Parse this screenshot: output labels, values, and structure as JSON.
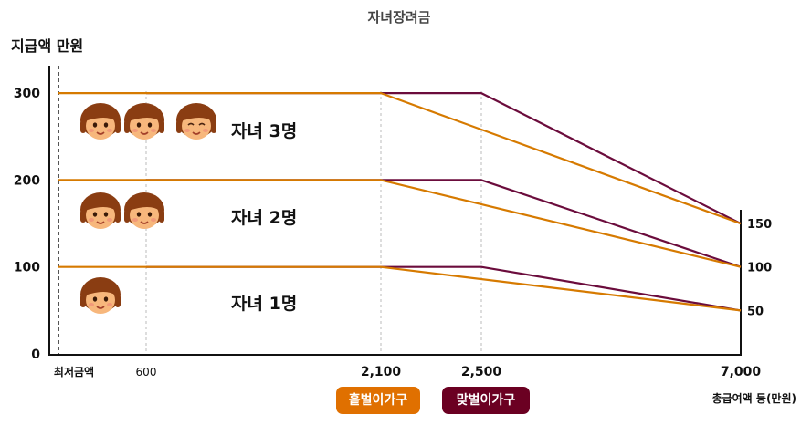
{
  "chart_data": {
    "type": "line",
    "title": "자녀장려금",
    "ylabel": "지급액 만원",
    "xlabel": "총급여액 등(만원)",
    "x_axis": {
      "origin_label": "최저금액",
      "breakpoints": [
        600,
        2100,
        2500,
        7000
      ],
      "tick_labels": [
        "600",
        "2,100",
        "2,500",
        "7,000"
      ]
    },
    "y_ticks": [
      {
        "value": 0,
        "label": "0"
      },
      {
        "value": 100,
        "label": "100"
      },
      {
        "value": 200,
        "label": "200"
      },
      {
        "value": 300,
        "label": "300"
      }
    ],
    "right_labels": [
      {
        "value": 150,
        "label": "150"
      },
      {
        "value": 100,
        "label": "100"
      },
      {
        "value": 50,
        "label": "50"
      }
    ],
    "groups": [
      {
        "label": "자녀 3명",
        "children": 3
      },
      {
        "label": "자녀 2명",
        "children": 2
      },
      {
        "label": "자녀 1명",
        "children": 1
      }
    ],
    "series": [
      {
        "name": "홑벌이가구",
        "color": "#d67a00",
        "lines": [
          {
            "points": [
              [
                0,
                300
              ],
              [
                2100,
                300
              ],
              [
                7000,
                150
              ]
            ]
          },
          {
            "points": [
              [
                0,
                200
              ],
              [
                2100,
                200
              ],
              [
                7000,
                100
              ]
            ]
          },
          {
            "points": [
              [
                0,
                100
              ],
              [
                2100,
                100
              ],
              [
                7000,
                50
              ]
            ]
          }
        ]
      },
      {
        "name": "맞벌이가구",
        "color": "#6b0c3c",
        "lines": [
          {
            "points": [
              [
                600,
                300
              ],
              [
                2500,
                300
              ],
              [
                7000,
                150
              ]
            ]
          },
          {
            "points": [
              [
                600,
                200
              ],
              [
                2500,
                200
              ],
              [
                7000,
                100
              ]
            ]
          },
          {
            "points": [
              [
                600,
                100
              ],
              [
                2500,
                100
              ],
              [
                7000,
                50
              ]
            ]
          }
        ]
      }
    ],
    "legend": [
      {
        "label": "홑벌이가구",
        "color": "#e07000"
      },
      {
        "label": "맞벌이가구",
        "color": "#6b0022"
      }
    ]
  }
}
